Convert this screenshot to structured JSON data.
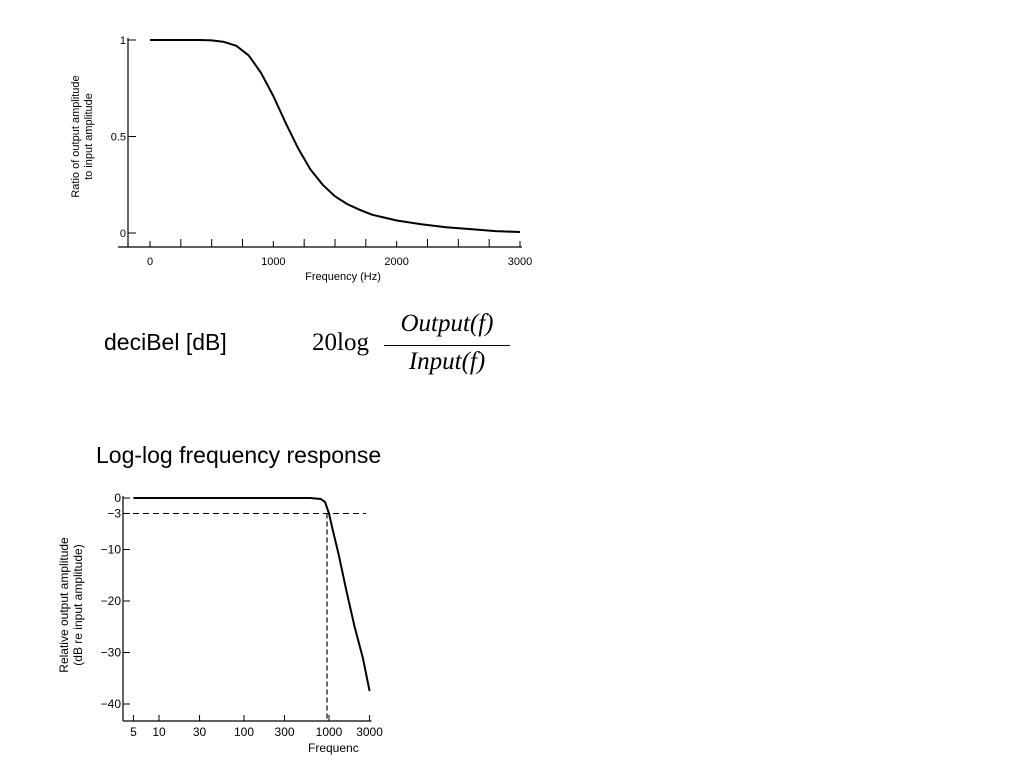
{
  "decibel_label": "deciBel [dB]",
  "formula": {
    "prefix": "20log",
    "numerator": "Output(f)",
    "denominator": "Input(f)"
  },
  "loglog_heading": "Log-log frequency response",
  "chart_data": [
    {
      "type": "line",
      "title": "",
      "xlabel": "Frequency (Hz)",
      "ylabel": "Ratio of output amplitude to input amplitude",
      "ylabel_lines": [
        "Ratio of output amplitude",
        "to input amplitude"
      ],
      "xlim": [
        -100,
        3000
      ],
      "ylim": [
        0,
        1
      ],
      "x_tick_labels": [
        "0",
        "1000",
        "2000",
        "3000"
      ],
      "x_tick_values": [
        0,
        1000,
        2000,
        3000
      ],
      "x_minor_ticks": [
        0,
        250,
        500,
        750,
        1000,
        1250,
        1500,
        1750,
        2000,
        2250,
        2500,
        2750,
        3000
      ],
      "y_tick_labels": [
        "0",
        "0.5",
        "1"
      ],
      "y_tick_values": [
        0,
        0.5,
        1
      ],
      "grid": false,
      "color": "#000000",
      "series": [
        {
          "x": [
            0,
            200,
            400,
            500,
            600,
            700,
            800,
            900,
            1000,
            1100,
            1200,
            1300,
            1400,
            1500,
            1600,
            1700,
            1800,
            2000,
            2200,
            2400,
            2600,
            2800,
            3000
          ],
          "y": [
            1,
            1,
            1,
            0.998,
            0.99,
            0.97,
            0.92,
            0.83,
            0.71,
            0.57,
            0.44,
            0.33,
            0.25,
            0.19,
            0.15,
            0.12,
            0.095,
            0.065,
            0.045,
            0.03,
            0.02,
            0.01,
            0.005
          ]
        }
      ]
    },
    {
      "type": "line",
      "title": "",
      "xlabel": "Frequenc",
      "ylabel": "Relative output amplitude (dB re input amplitude)",
      "ylabel_lines": [
        "Relative output amplitude",
        "(dB re input amplitude)"
      ],
      "x_scale": "log",
      "xlim": [
        4,
        4000
      ],
      "ylim": [
        -41,
        0
      ],
      "x_tick_labels": [
        "5",
        "10",
        "30",
        "100",
        "300",
        "1000",
        "3000"
      ],
      "x_tick_values": [
        5,
        10,
        30,
        100,
        300,
        1000,
        3000
      ],
      "y_tick_labels": [
        "0",
        "-3",
        "-10",
        "-20",
        "-30",
        "-40"
      ],
      "y_tick_values": [
        0,
        -3,
        -10,
        -20,
        -30,
        -40
      ],
      "grid": false,
      "cutoff": {
        "x": 1000,
        "y": -3
      },
      "color": "#000000",
      "series": [
        {
          "x": [
            5,
            10,
            30,
            100,
            300,
            600,
            800,
            900,
            1000,
            1100,
            1300,
            1600,
            2000,
            2500,
            3000
          ],
          "y": [
            0,
            0,
            0,
            0,
            0,
            0,
            -0.2,
            -0.8,
            -3,
            -6,
            -11,
            -18,
            -25,
            -31,
            -37.5
          ]
        }
      ]
    }
  ]
}
